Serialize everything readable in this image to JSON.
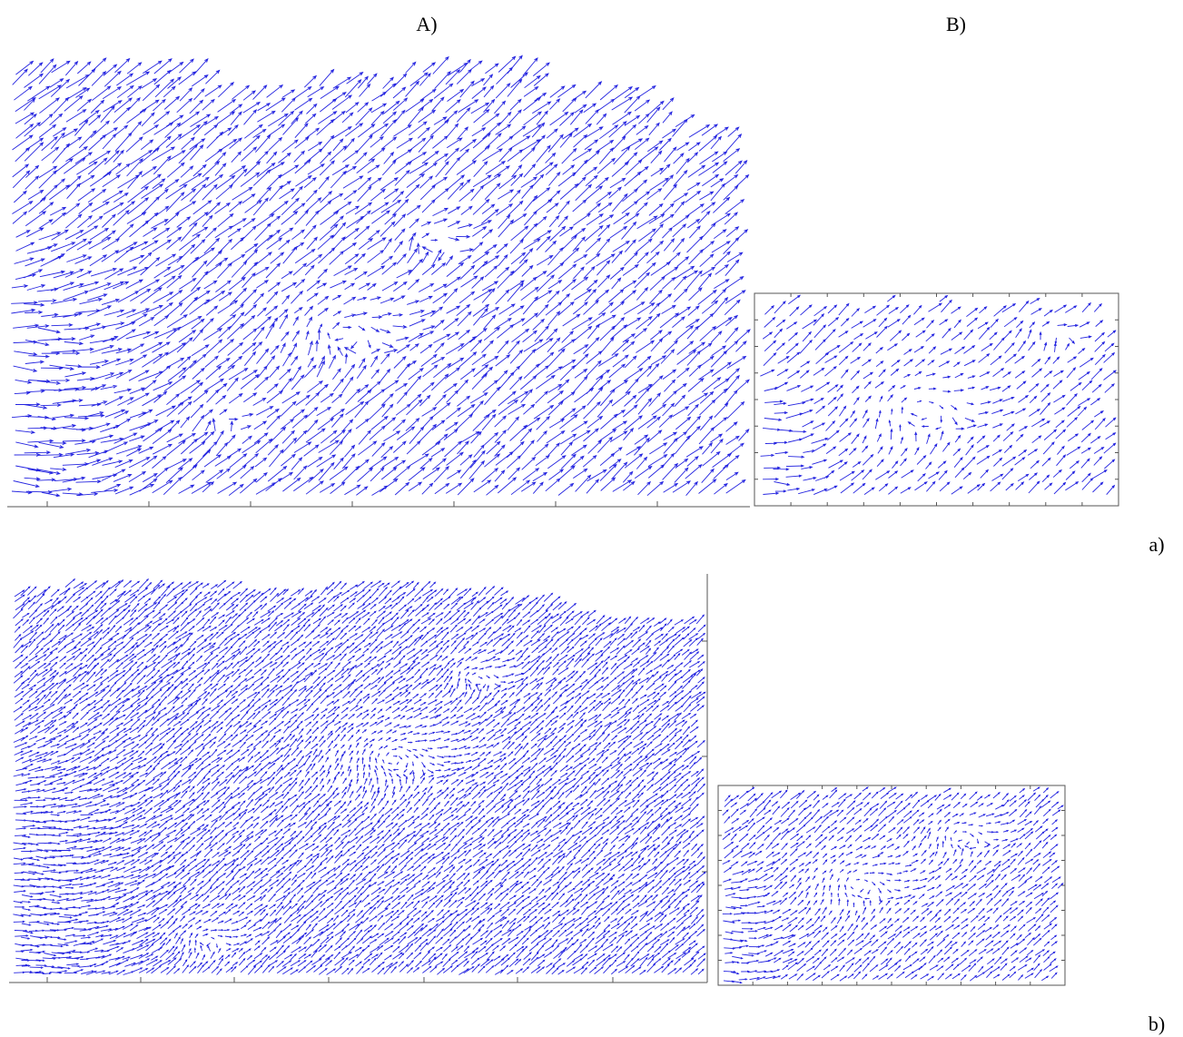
{
  "labels": {
    "col_a": "A)",
    "col_b": "B)",
    "row_a": "a)",
    "row_b": "b)"
  }
}
